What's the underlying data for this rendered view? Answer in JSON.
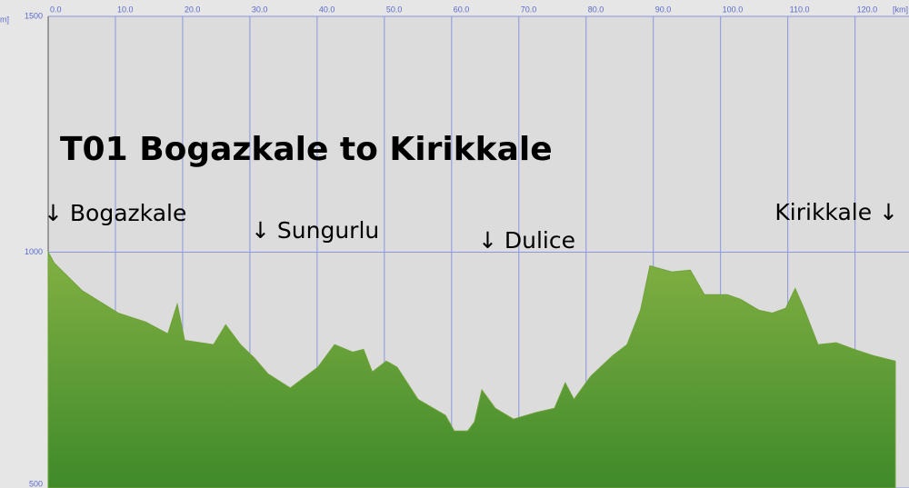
{
  "chart_data": {
    "type": "area",
    "title": "T01 Bogazkale to Kirikkale",
    "annotations": [
      "↓ Bogazkale",
      "↓ Sungurlu",
      "↓ Dulice",
      "Kirikkale ↓"
    ],
    "y_unit": "m]",
    "x_unit": "[km]",
    "color": "#6fa23a",
    "x": [
      0,
      0.9,
      5,
      10.4,
      14.5,
      17.8,
      19.2,
      20.3,
      24.6,
      26.4,
      28.6,
      30.7,
      32.7,
      36,
      40.1,
      42.6,
      45.3,
      46.9,
      48.2,
      50.3,
      51.9,
      55,
      59.1,
      60.4,
      62.4,
      63.4,
      64.5,
      66.5,
      69.2,
      72.5,
      75.3,
      76.9,
      78.2,
      80.7,
      84,
      86.1,
      88.1,
      89.5,
      92.8,
      95.5,
      97.6,
      101,
      103,
      105.7,
      107.7,
      109.7,
      111.1,
      112.4,
      114.5,
      117.2,
      119.9,
      122.6,
      126
    ],
    "y": [
      1000,
      977,
      919,
      871,
      852,
      827,
      890,
      813,
      804,
      846,
      804,
      775,
      742,
      712,
      756,
      804,
      788,
      794,
      746,
      769,
      756,
      688,
      654,
      621,
      621,
      640,
      708,
      669,
      646,
      660,
      669,
      723,
      688,
      737,
      781,
      804,
      877,
      971,
      958,
      962,
      910,
      910,
      900,
      877,
      871,
      881,
      923,
      881,
      804,
      808,
      794,
      781,
      769
    ],
    "xlim": [
      0,
      126
    ],
    "ylim": [
      500,
      1500
    ],
    "xticks": [
      {
        "value": 0,
        "label": "0.0"
      },
      {
        "value": 10,
        "label": "10.0"
      },
      {
        "value": 20,
        "label": "20.0"
      },
      {
        "value": 30,
        "label": "30.0"
      },
      {
        "value": 40,
        "label": "40.0"
      },
      {
        "value": 50,
        "label": "50.0"
      },
      {
        "value": 60,
        "label": "60.0"
      },
      {
        "value": 70,
        "label": "70.0"
      },
      {
        "value": 80,
        "label": "80.0"
      },
      {
        "value": 90,
        "label": "90.0"
      },
      {
        "value": 100,
        "label": "100.0"
      },
      {
        "value": 110,
        "label": "110.0"
      },
      {
        "value": 120,
        "label": "120.0"
      }
    ],
    "yticks": [
      500,
      1000,
      1500
    ],
    "grid": true
  }
}
